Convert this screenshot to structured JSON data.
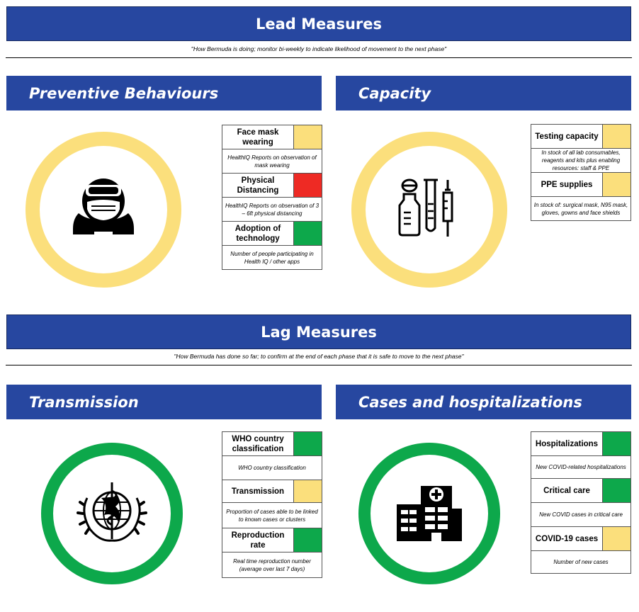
{
  "lead": {
    "title": "Lead Measures",
    "subtitle": "\"How Bermuda is doing; monitor bi-weekly to indicate likelihood of movement to the next phase\""
  },
  "lag": {
    "title": "Lag Measures",
    "subtitle": "\"How Bermuda has done so far; to confirm at the end of each phase that it is safe to move to the next phase\""
  },
  "colors": {
    "banner_blue": "#2747a0",
    "green": "#0da84b",
    "yellow": "#fbdf7c",
    "red": "#ee2a24"
  },
  "sections": {
    "preventive": {
      "title": "Preventive Behaviours",
      "ring_color": "#fbdf7c",
      "icon": "masked-person-icon",
      "items": [
        {
          "label": "Face mask wearing",
          "status": "yellow",
          "description": "HealthIQ Reports on observation of mask wearing"
        },
        {
          "label": "Physical Distancing",
          "status": "red",
          "description": "HealthIQ Reports on observation of 3 – 6ft physical distancing"
        },
        {
          "label": "Adoption of technology",
          "status": "green",
          "description": "Number of people participating in Health IQ / other apps"
        }
      ]
    },
    "capacity": {
      "title": "Capacity",
      "ring_color": "#fbdf7c",
      "icon": "lab-equipment-icon",
      "items": [
        {
          "label": "Testing capacity",
          "status": "yellow",
          "description": "In stock of all lab consumables, reagents and kits plus enabling resources: staff & PPE"
        },
        {
          "label": "PPE supplies",
          "status": "yellow",
          "description": "In stock of: surgical mask, N95 mask, gloves, gowns and face shields"
        }
      ]
    },
    "transmission": {
      "title": "Transmission",
      "ring_color": "#0da84b",
      "icon": "who-emblem-icon",
      "items": [
        {
          "label": "WHO country classification",
          "status": "green",
          "description": "WHO country classification"
        },
        {
          "label": "Transmission",
          "status": "yellow",
          "description": "Proportion of cases able to be linked to known cases or clusters"
        },
        {
          "label": "Reproduction rate",
          "status": "green",
          "description": "Real time reproduction number (average over last 7 days)"
        }
      ]
    },
    "cases": {
      "title": "Cases and hospitalizations",
      "ring_color": "#0da84b",
      "icon": "hospital-icon",
      "items": [
        {
          "label": "Hospitalizations",
          "status": "green",
          "description": "New COVID-related hospitalizations"
        },
        {
          "label": "Critical care",
          "status": "green",
          "description": "New COVID cases in critical care"
        },
        {
          "label": "COVID-19 cases",
          "status": "yellow",
          "description": "Number of new cases"
        }
      ]
    }
  }
}
